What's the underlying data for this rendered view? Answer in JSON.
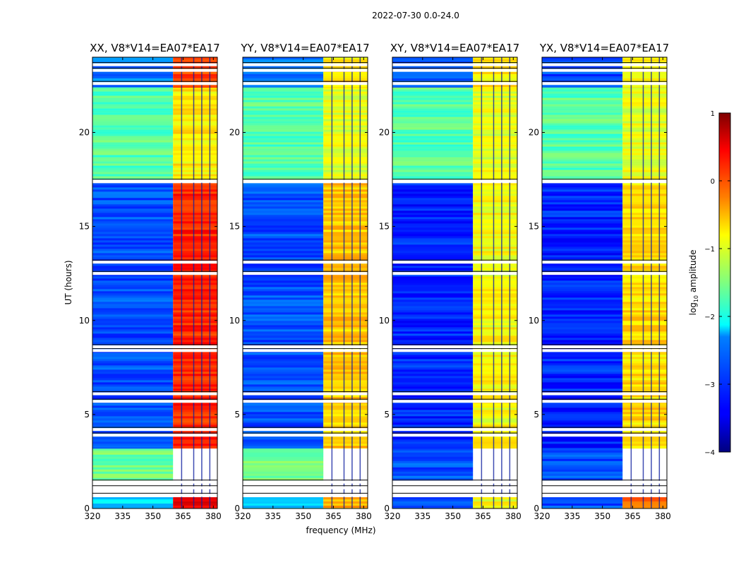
{
  "figure": {
    "suptitle": "2022-07-30 0.0-24.0",
    "xlabel": "frequency (MHz)",
    "ylabel": "UT (hours)"
  },
  "colorbar": {
    "label_prefix": "log",
    "label_sub": "10",
    "label_suffix": " amplitude",
    "ticks": [
      1,
      0,
      -1,
      -2,
      -3,
      -4
    ],
    "tick_labels": [
      "1",
      "0",
      "−1",
      "−2",
      "−3",
      "−4"
    ],
    "colormap": "jet",
    "range": [
      -4,
      1
    ]
  },
  "chart_data": [
    {
      "type": "heatmap",
      "title": "XX, V8*V14=EA07*EA17",
      "xlabel": "",
      "ylabel": "UT (hours)",
      "xlim": [
        320,
        382
      ],
      "ylim": [
        0,
        24
      ],
      "xticks": [
        320,
        335,
        350,
        365,
        380
      ],
      "yticks": [
        0,
        5,
        10,
        15,
        20
      ],
      "bands": [
        {
          "f_range": [
            320,
            360
          ],
          "t_range": [
            0,
            0.6
          ],
          "log10_amplitude": -2.3
        },
        {
          "f_range": [
            360,
            382
          ],
          "t_range": [
            0,
            0.6
          ],
          "log10_amplitude": 0.4
        },
        {
          "f_range": [
            320,
            360
          ],
          "t_range": [
            1.5,
            3.2
          ],
          "log10_amplitude": -1.6
        },
        {
          "f_range": [
            320,
            360
          ],
          "t_range": [
            3.2,
            17.3
          ],
          "log10_amplitude": -3.0
        },
        {
          "f_range": [
            360,
            382
          ],
          "t_range": [
            3.2,
            17.3
          ],
          "log10_amplitude": 0.2
        },
        {
          "f_range": [
            320,
            360
          ],
          "t_range": [
            17.5,
            22.4
          ],
          "log10_amplitude": -1.7
        },
        {
          "f_range": [
            360,
            382
          ],
          "t_range": [
            17.5,
            22.4
          ],
          "log10_amplitude": -0.8
        },
        {
          "f_range": [
            320,
            360
          ],
          "t_range": [
            22.4,
            24
          ],
          "log10_amplitude": -2.8
        },
        {
          "f_range": [
            360,
            382
          ],
          "t_range": [
            22.4,
            24
          ],
          "log10_amplitude": 0.1
        }
      ]
    },
    {
      "type": "heatmap",
      "title": "YY, V8*V14=EA07*EA17",
      "xlabel": "frequency (MHz)",
      "ylabel": "",
      "xlim": [
        320,
        382
      ],
      "ylim": [
        0,
        24
      ],
      "xticks": [
        320,
        335,
        350,
        365,
        380
      ],
      "yticks": [
        0,
        5,
        10,
        15,
        20
      ],
      "bands": [
        {
          "f_range": [
            320,
            360
          ],
          "t_range": [
            0,
            0.6
          ],
          "log10_amplitude": -2.3
        },
        {
          "f_range": [
            360,
            382
          ],
          "t_range": [
            0,
            0.6
          ],
          "log10_amplitude": -0.5
        },
        {
          "f_range": [
            320,
            360
          ],
          "t_range": [
            1.5,
            3.2
          ],
          "log10_amplitude": -1.6
        },
        {
          "f_range": [
            320,
            360
          ],
          "t_range": [
            3.2,
            17.3
          ],
          "log10_amplitude": -3.0
        },
        {
          "f_range": [
            360,
            382
          ],
          "t_range": [
            3.2,
            17.3
          ],
          "log10_amplitude": -0.6
        },
        {
          "f_range": [
            320,
            360
          ],
          "t_range": [
            17.5,
            22.4
          ],
          "log10_amplitude": -1.7
        },
        {
          "f_range": [
            360,
            382
          ],
          "t_range": [
            17.5,
            22.4
          ],
          "log10_amplitude": -1.0
        },
        {
          "f_range": [
            320,
            360
          ],
          "t_range": [
            22.4,
            24
          ],
          "log10_amplitude": -2.8
        },
        {
          "f_range": [
            360,
            382
          ],
          "t_range": [
            22.4,
            24
          ],
          "log10_amplitude": -0.7
        }
      ]
    },
    {
      "type": "heatmap",
      "title": "XY, V8*V14=EA07*EA17",
      "xlabel": "",
      "ylabel": "",
      "xlim": [
        320,
        382
      ],
      "ylim": [
        0,
        24
      ],
      "xticks": [
        320,
        335,
        350,
        365,
        380
      ],
      "yticks": [
        0,
        5,
        10,
        15,
        20
      ],
      "bands": [
        {
          "f_range": [
            320,
            360
          ],
          "t_range": [
            0,
            0.6
          ],
          "log10_amplitude": -3.0
        },
        {
          "f_range": [
            360,
            382
          ],
          "t_range": [
            0,
            0.6
          ],
          "log10_amplitude": -0.9
        },
        {
          "f_range": [
            320,
            360
          ],
          "t_range": [
            1.5,
            3.2
          ],
          "log10_amplitude": -3.0
        },
        {
          "f_range": [
            320,
            360
          ],
          "t_range": [
            3.2,
            17.3
          ],
          "log10_amplitude": -3.2
        },
        {
          "f_range": [
            360,
            382
          ],
          "t_range": [
            3.2,
            17.3
          ],
          "log10_amplitude": -0.9
        },
        {
          "f_range": [
            320,
            360
          ],
          "t_range": [
            17.5,
            22.4
          ],
          "log10_amplitude": -1.7
        },
        {
          "f_range": [
            360,
            382
          ],
          "t_range": [
            17.5,
            22.4
          ],
          "log10_amplitude": -1.0
        },
        {
          "f_range": [
            320,
            360
          ],
          "t_range": [
            22.4,
            24
          ],
          "log10_amplitude": -3.0
        },
        {
          "f_range": [
            360,
            382
          ],
          "t_range": [
            22.4,
            24
          ],
          "log10_amplitude": -0.8
        }
      ]
    },
    {
      "type": "heatmap",
      "title": "YX, V8*V14=EA07*EA17",
      "xlabel": "",
      "ylabel": "",
      "xlim": [
        320,
        382
      ],
      "ylim": [
        0,
        24
      ],
      "xticks": [
        320,
        335,
        350,
        365,
        380
      ],
      "yticks": [
        0,
        5,
        10,
        15,
        20
      ],
      "bands": [
        {
          "f_range": [
            320,
            360
          ],
          "t_range": [
            0,
            0.6
          ],
          "log10_amplitude": -3.0
        },
        {
          "f_range": [
            360,
            382
          ],
          "t_range": [
            0,
            0.6
          ],
          "log10_amplitude": -0.2
        },
        {
          "f_range": [
            320,
            360
          ],
          "t_range": [
            1.5,
            3.2
          ],
          "log10_amplitude": -3.0
        },
        {
          "f_range": [
            320,
            360
          ],
          "t_range": [
            3.2,
            17.3
          ],
          "log10_amplitude": -3.2
        },
        {
          "f_range": [
            360,
            382
          ],
          "t_range": [
            3.2,
            17.3
          ],
          "log10_amplitude": -0.7
        },
        {
          "f_range": [
            320,
            360
          ],
          "t_range": [
            17.5,
            22.4
          ],
          "log10_amplitude": -1.7
        },
        {
          "f_range": [
            360,
            382
          ],
          "t_range": [
            17.5,
            22.4
          ],
          "log10_amplitude": -1.0
        },
        {
          "f_range": [
            320,
            360
          ],
          "t_range": [
            22.4,
            24
          ],
          "log10_amplitude": -3.0
        },
        {
          "f_range": [
            360,
            382
          ],
          "t_range": [
            22.4,
            24
          ],
          "log10_amplitude": -0.8
        }
      ]
    }
  ]
}
